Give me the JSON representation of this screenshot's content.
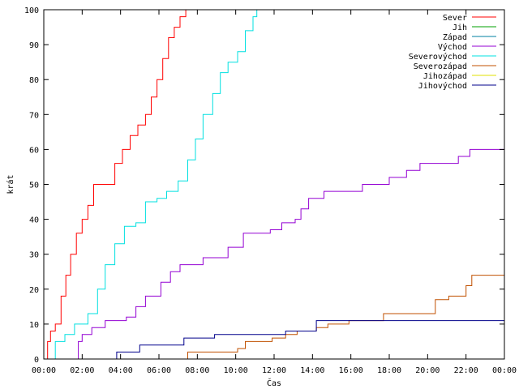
{
  "chart_data": {
    "type": "line",
    "xlabel": "Čas",
    "ylabel": "krát",
    "xlim": [
      0,
      24
    ],
    "ylim": [
      0,
      100
    ],
    "x_ticks": [
      0,
      2,
      4,
      6,
      8,
      10,
      12,
      14,
      16,
      18,
      20,
      22,
      24
    ],
    "x_tick_labels": [
      "00:00",
      "02:00",
      "04:00",
      "06:00",
      "08:00",
      "10:00",
      "12:00",
      "14:00",
      "16:00",
      "18:00",
      "20:00",
      "22:00",
      "00:00"
    ],
    "y_ticks": [
      0,
      10,
      20,
      30,
      40,
      50,
      60,
      70,
      80,
      90,
      100
    ],
    "y_tick_labels": [
      "0",
      "10",
      "20",
      "30",
      "40",
      "50",
      "60",
      "70",
      "80",
      "90",
      "100"
    ],
    "legend_position": "top-right",
    "grid": false,
    "series": [
      {
        "name": "Sever",
        "color": "#ff0000",
        "points": [
          [
            0.0,
            0
          ],
          [
            0.2,
            5
          ],
          [
            0.35,
            8
          ],
          [
            0.6,
            10
          ],
          [
            0.9,
            18
          ],
          [
            1.15,
            24
          ],
          [
            1.4,
            30
          ],
          [
            1.7,
            36
          ],
          [
            2.0,
            40
          ],
          [
            2.3,
            44
          ],
          [
            2.6,
            50
          ],
          [
            3.4,
            50
          ],
          [
            3.7,
            56
          ],
          [
            4.1,
            60
          ],
          [
            4.5,
            64
          ],
          [
            4.9,
            67
          ],
          [
            5.3,
            70
          ],
          [
            5.6,
            75
          ],
          [
            5.9,
            80
          ],
          [
            6.2,
            86
          ],
          [
            6.5,
            92
          ],
          [
            6.8,
            95
          ],
          [
            7.1,
            98
          ],
          [
            7.4,
            100
          ]
        ]
      },
      {
        "name": "Jih",
        "color": "#00a000",
        "points": []
      },
      {
        "name": "Západ",
        "color": "#0080a0",
        "points": []
      },
      {
        "name": "Východ",
        "color": "#9400d3",
        "points": [
          [
            1.7,
            0
          ],
          [
            1.8,
            5
          ],
          [
            2.0,
            7
          ],
          [
            2.5,
            9
          ],
          [
            3.2,
            11
          ],
          [
            4.3,
            12
          ],
          [
            4.8,
            15
          ],
          [
            5.3,
            18
          ],
          [
            6.1,
            22
          ],
          [
            6.6,
            25
          ],
          [
            7.1,
            27
          ],
          [
            8.3,
            29
          ],
          [
            9.6,
            32
          ],
          [
            10.4,
            36
          ],
          [
            11.8,
            37
          ],
          [
            12.4,
            39
          ],
          [
            13.1,
            40
          ],
          [
            13.4,
            43
          ],
          [
            13.8,
            46
          ],
          [
            14.6,
            48
          ],
          [
            16.6,
            50
          ],
          [
            18.0,
            52
          ],
          [
            18.9,
            54
          ],
          [
            19.6,
            56
          ],
          [
            21.6,
            58
          ],
          [
            22.2,
            60
          ],
          [
            24.0,
            60
          ]
        ]
      },
      {
        "name": "Severovýchod",
        "color": "#00e0e0",
        "points": [
          [
            0.4,
            0
          ],
          [
            0.6,
            5
          ],
          [
            1.1,
            7
          ],
          [
            1.6,
            10
          ],
          [
            2.3,
            13
          ],
          [
            2.8,
            20
          ],
          [
            3.2,
            27
          ],
          [
            3.7,
            33
          ],
          [
            4.2,
            38
          ],
          [
            4.8,
            39
          ],
          [
            5.3,
            45
          ],
          [
            5.9,
            46
          ],
          [
            6.4,
            48
          ],
          [
            7.0,
            51
          ],
          [
            7.5,
            57
          ],
          [
            7.9,
            63
          ],
          [
            8.3,
            70
          ],
          [
            8.8,
            76
          ],
          [
            9.2,
            82
          ],
          [
            9.6,
            85
          ],
          [
            10.1,
            88
          ],
          [
            10.5,
            94
          ],
          [
            10.9,
            98
          ],
          [
            11.1,
            100
          ]
        ]
      },
      {
        "name": "Severozápad",
        "color": "#c05000",
        "points": [
          [
            7.4,
            0
          ],
          [
            7.5,
            2
          ],
          [
            10.1,
            3
          ],
          [
            10.5,
            5
          ],
          [
            11.9,
            6
          ],
          [
            12.6,
            7
          ],
          [
            13.2,
            8
          ],
          [
            14.2,
            9
          ],
          [
            14.8,
            10
          ],
          [
            15.9,
            11
          ],
          [
            17.7,
            13
          ],
          [
            20.4,
            17
          ],
          [
            21.1,
            18
          ],
          [
            22.0,
            21
          ],
          [
            22.3,
            24
          ],
          [
            24.0,
            24
          ]
        ]
      },
      {
        "name": "Jihozápad",
        "color": "#e0e000",
        "points": []
      },
      {
        "name": "Jihovýchod",
        "color": "#00008b",
        "points": [
          [
            3.7,
            0
          ],
          [
            3.8,
            2
          ],
          [
            5.0,
            4
          ],
          [
            7.3,
            6
          ],
          [
            8.9,
            7
          ],
          [
            12.6,
            8
          ],
          [
            14.2,
            11
          ],
          [
            23.9,
            11
          ],
          [
            24.0,
            12
          ]
        ]
      }
    ]
  }
}
